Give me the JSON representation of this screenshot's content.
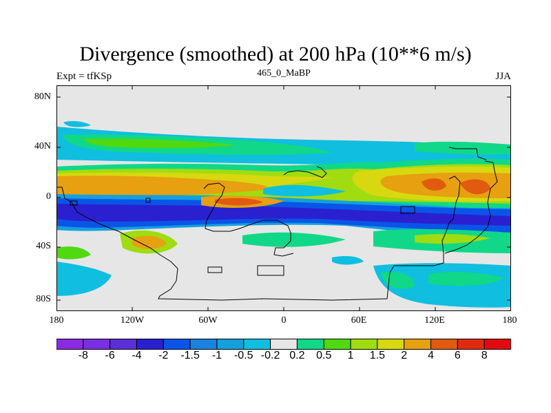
{
  "title": "Divergence (smoothed) at 200 hPa (10**6 m/s)",
  "left_label": "Expt = tfKSp",
  "center_label": "465_0_MaBP",
  "right_label": "JJA",
  "lat_labels": [
    "80N",
    "40N",
    "0",
    "40S",
    "80S"
  ],
  "lon_labels": [
    "180",
    "120W",
    "60W",
    "0",
    "60E",
    "120E",
    "180"
  ],
  "colorbar": {
    "labels": [
      "-8",
      "-6",
      "-4",
      "-2",
      "-1.5",
      "-1",
      "-0.5",
      "-0.2",
      "0.2",
      "0.5",
      "1",
      "1.5",
      "2",
      "4",
      "6",
      "8"
    ],
    "colors": [
      "#8a2be2",
      "#7a2fe0",
      "#5a30d8",
      "#2a20d0",
      "#0a55e8",
      "#1a82e0",
      "#14a0dc",
      "#10bee0",
      "#e6e6e6",
      "#10d888",
      "#50d810",
      "#a0dc10",
      "#d8d810",
      "#e6a010",
      "#e05a10",
      "#e02a10",
      "#e00a10"
    ]
  },
  "colors": {
    "background": "#e6e6e6",
    "coast": "#000000"
  }
}
